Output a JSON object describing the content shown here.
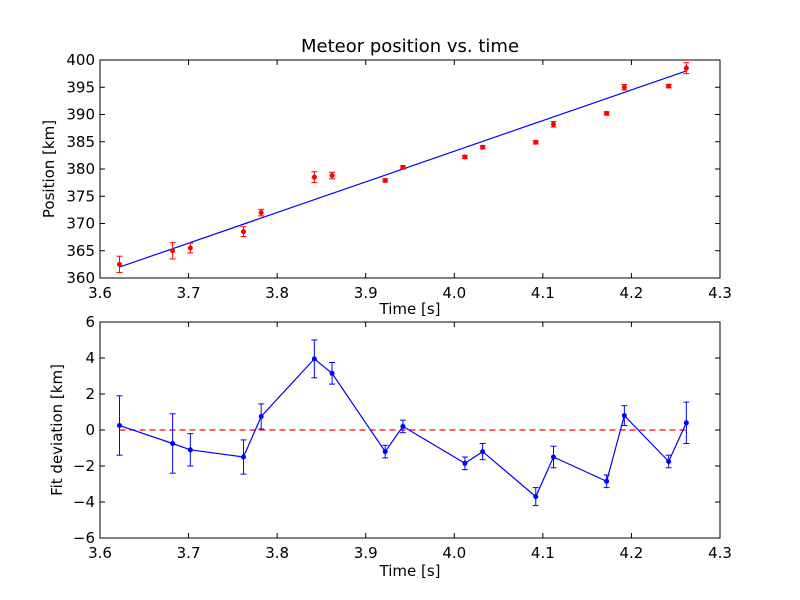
{
  "chart_data": [
    {
      "type": "scatter",
      "title": "Meteor position vs. time",
      "xlabel": "Time [s]",
      "ylabel": "Position [km]",
      "xlim": [
        3.6,
        4.3
      ],
      "ylim": [
        360,
        400
      ],
      "xticks": [
        "3.6",
        "3.7",
        "3.8",
        "3.9",
        "4.0",
        "4.1",
        "4.2",
        "4.3"
      ],
      "yticks": [
        "360",
        "365",
        "370",
        "375",
        "380",
        "385",
        "390",
        "395",
        "400"
      ],
      "grid": false,
      "colors": {
        "points": "#ff0000",
        "fit": "#0000ff"
      },
      "points": {
        "x": [
          3.622,
          3.682,
          3.702,
          3.762,
          3.782,
          3.842,
          3.862,
          3.922,
          3.942,
          4.012,
          4.032,
          4.092,
          4.112,
          4.172,
          4.192,
          4.242,
          4.262
        ],
        "y": [
          362.5,
          365.0,
          365.5,
          368.5,
          372.0,
          378.5,
          378.8,
          377.9,
          380.3,
          382.2,
          384.0,
          384.9,
          388.2,
          390.2,
          395.0,
          395.2,
          398.5
        ],
        "yerr": [
          1.5,
          1.5,
          0.9,
          0.9,
          0.6,
          1.0,
          0.6,
          0.3,
          0.3,
          0.3,
          0.3,
          0.3,
          0.5,
          0.3,
          0.5,
          0.3,
          1.0
        ]
      },
      "fit_line": {
        "x": [
          3.622,
          4.262
        ],
        "y": [
          362.0,
          398.0
        ]
      }
    },
    {
      "type": "line",
      "title": "",
      "xlabel": "Time [s]",
      "ylabel": "Fit deviation [km]",
      "xlim": [
        3.6,
        4.3
      ],
      "ylim": [
        -6,
        6
      ],
      "xticks": [
        "3.6",
        "3.7",
        "3.8",
        "3.9",
        "4.0",
        "4.1",
        "4.2",
        "4.3"
      ],
      "yticks": [
        "−6",
        "−4",
        "−2",
        "0",
        "2",
        "4",
        "6"
      ],
      "grid": false,
      "colors": {
        "series": "#0000ff",
        "zero_line": "#ff0000"
      },
      "x": [
        3.622,
        3.682,
        3.702,
        3.762,
        3.782,
        3.842,
        3.862,
        3.922,
        3.942,
        4.012,
        4.032,
        4.092,
        4.112,
        4.172,
        4.192,
        4.242,
        4.262
      ],
      "y": [
        0.25,
        -0.75,
        -1.1,
        -1.5,
        0.75,
        3.95,
        3.15,
        -1.2,
        0.2,
        -1.85,
        -1.2,
        -3.7,
        -1.5,
        -2.85,
        0.8,
        -1.75,
        0.4
      ],
      "yerr": [
        1.65,
        1.65,
        0.9,
        0.95,
        0.7,
        1.05,
        0.6,
        0.35,
        0.35,
        0.35,
        0.45,
        0.5,
        0.6,
        0.35,
        0.55,
        0.35,
        1.15
      ],
      "reference_line_y": 0
    }
  ]
}
